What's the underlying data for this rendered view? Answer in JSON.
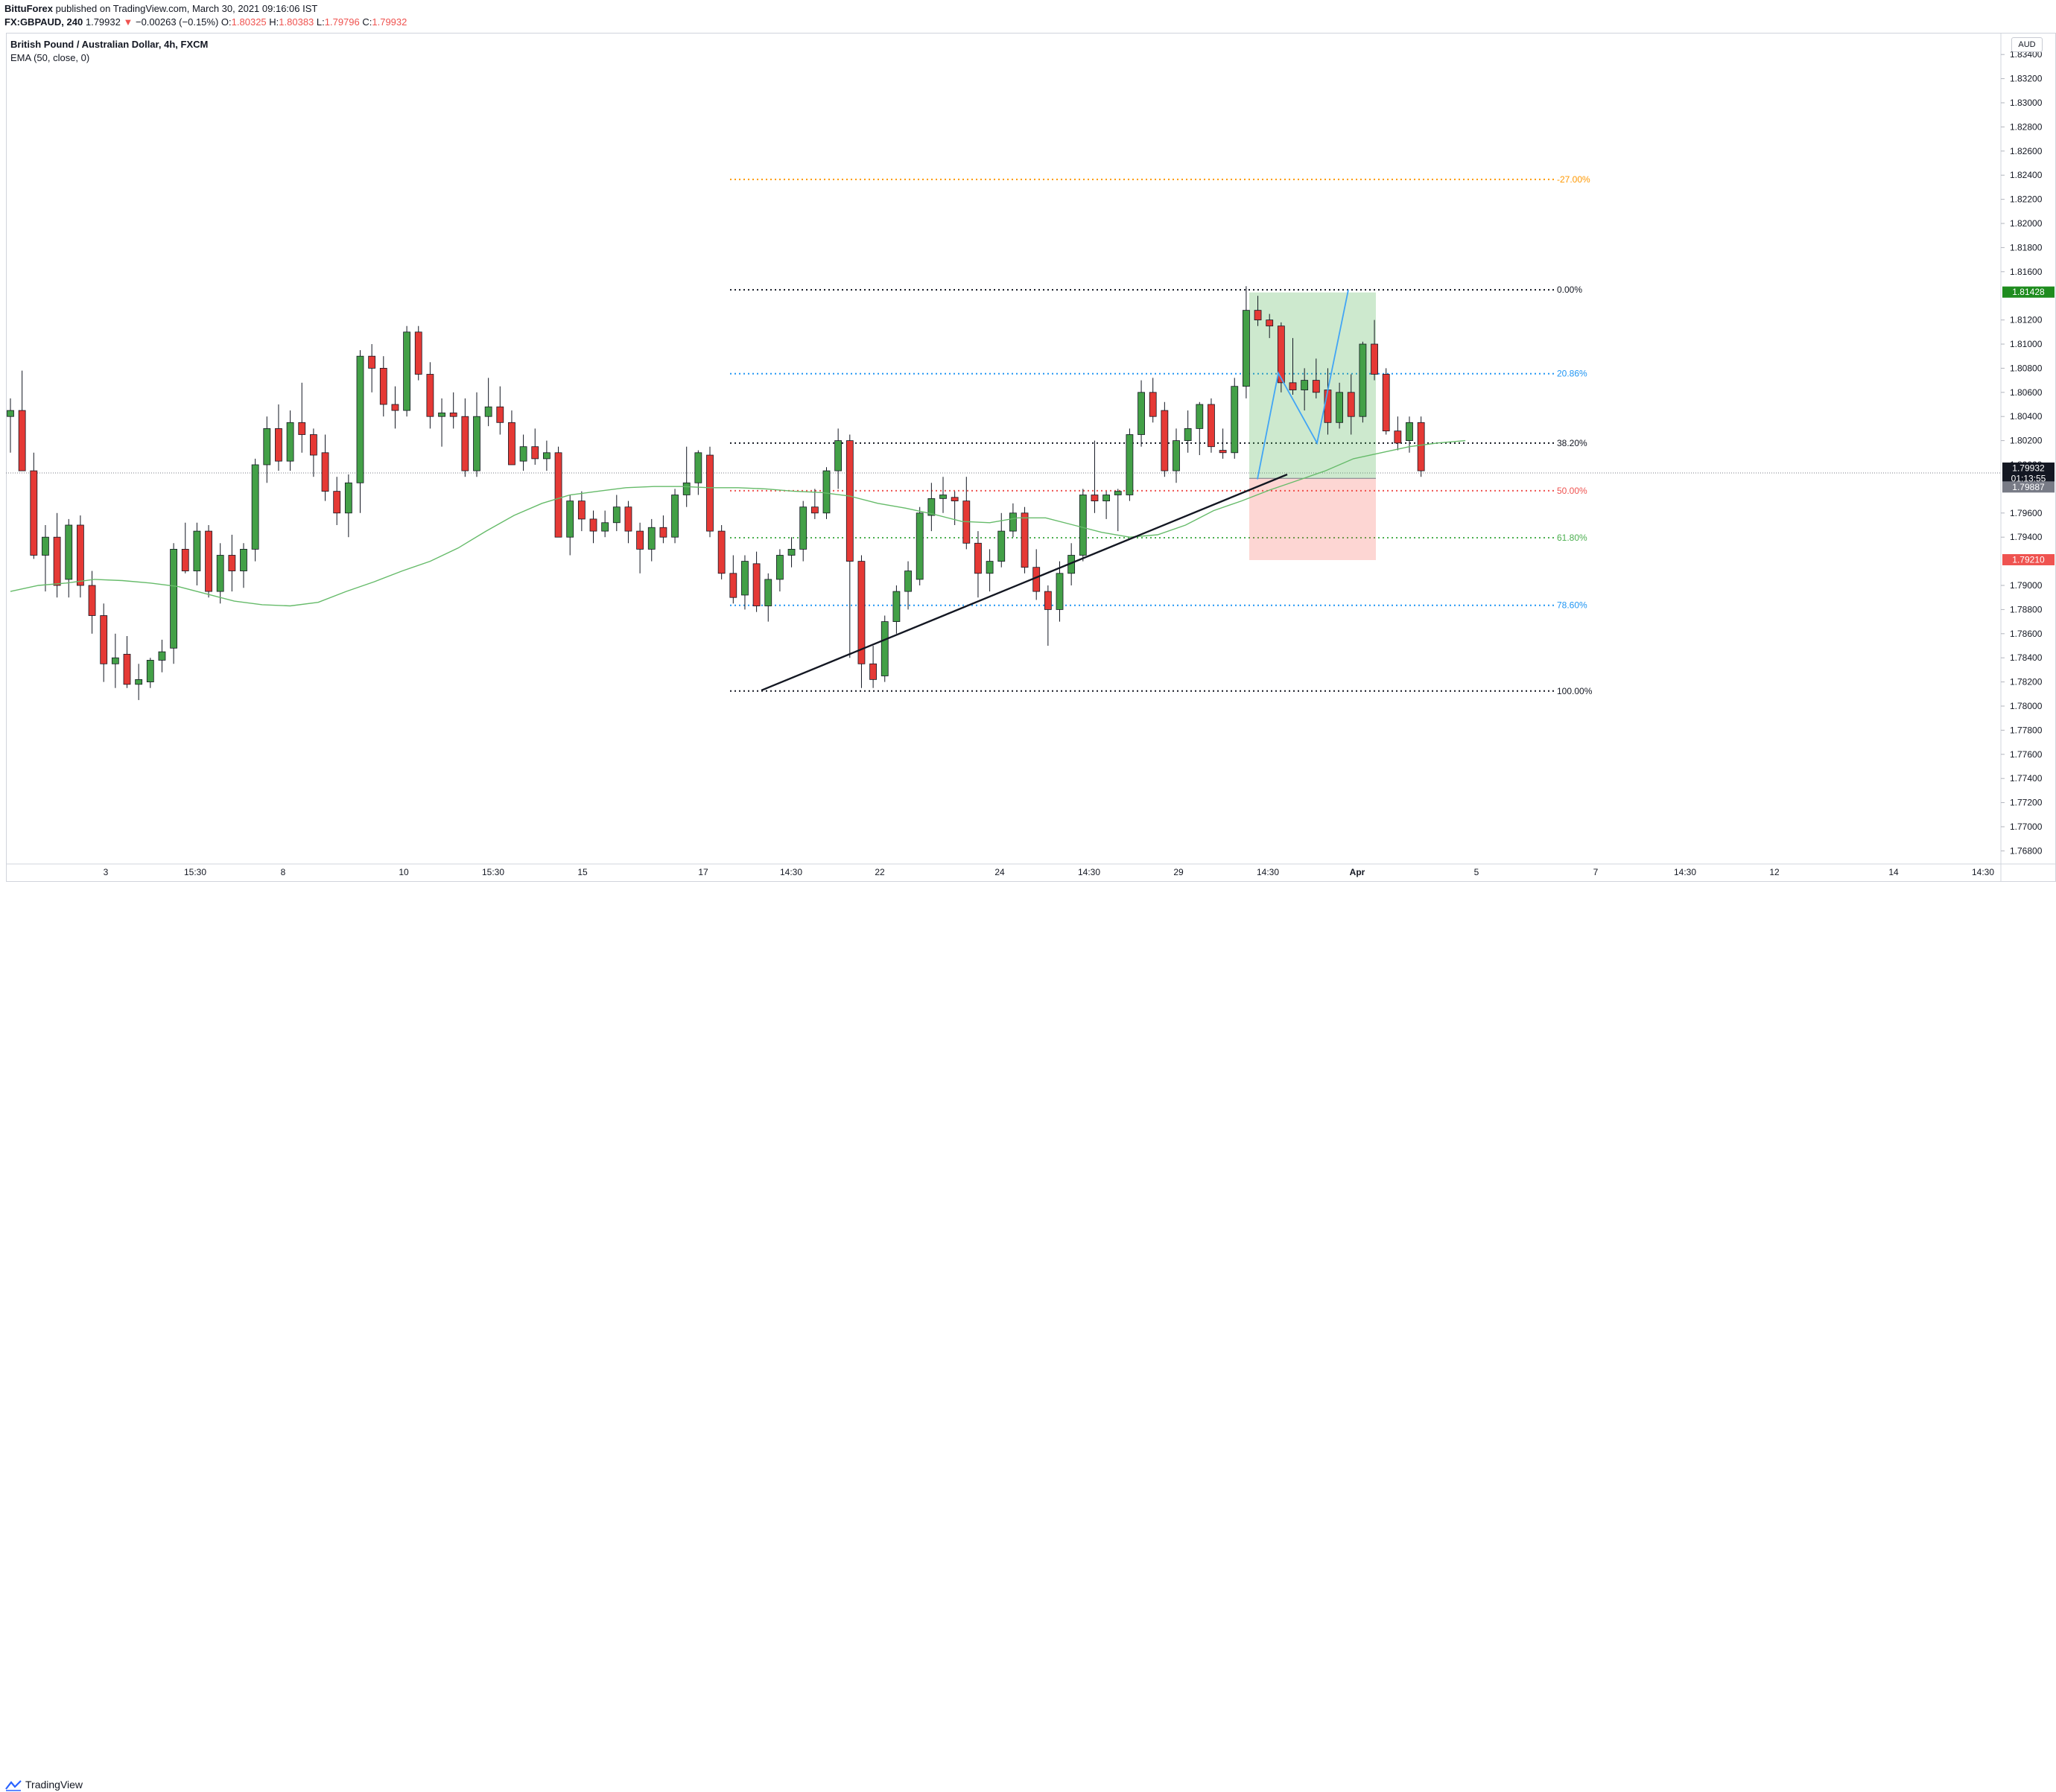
{
  "header": {
    "author": "BittuForex",
    "published_text": "published on TradingView.com, March 30, 2021 09:16:06 IST",
    "symbol": "FX:GBPAUD, 240",
    "last": "1.79932",
    "change": "−0.00263 (−0.15%)",
    "open_label": "O:",
    "open": "1.80325",
    "high_label": "H:",
    "high": "1.80383",
    "low_label": "L:",
    "low": "1.79796",
    "close_label": "C:",
    "close": "1.79932"
  },
  "legend": {
    "title": "British Pound / Australian Dollar, 4h, FXCM",
    "ema": "EMA (50, close, 0)"
  },
  "price_axis": {
    "currency": "AUD",
    "ticks": [
      "1.83400",
      "1.83200",
      "1.83000",
      "1.82800",
      "1.82600",
      "1.82400",
      "1.82200",
      "1.82000",
      "1.81800",
      "1.81600",
      "1.81200",
      "1.81000",
      "1.80800",
      "1.80600",
      "1.80400",
      "1.80200",
      "1.79600",
      "1.79400",
      "1.79000",
      "1.78800",
      "1.78600",
      "1.78400",
      "1.78200",
      "1.78000",
      "1.77800",
      "1.77600",
      "1.77400",
      "1.77200",
      "1.77000",
      "1.76800"
    ],
    "tick_values": [
      1.834,
      1.832,
      1.83,
      1.828,
      1.826,
      1.824,
      1.822,
      1.82,
      1.818,
      1.816,
      1.812,
      1.81,
      1.808,
      1.806,
      1.804,
      1.802,
      1.796,
      1.794,
      1.79,
      1.788,
      1.786,
      1.784,
      1.782,
      1.78,
      1.778,
      1.776,
      1.774,
      1.772,
      1.77,
      1.768
    ],
    "partial_tick": "1.80000",
    "badges": [
      {
        "label": "1.81428",
        "value": 1.81428,
        "color": "#1e8c1e"
      },
      {
        "label": "1.79932",
        "value": 1.79932,
        "color": "#131722"
      },
      {
        "label": "01:13:55",
        "value": 1.79932,
        "color": "#131722"
      },
      {
        "label": "1.79887",
        "value": 1.79887,
        "color": "#787b86"
      },
      {
        "label": "1.79210",
        "value": 1.7921,
        "color": "#ef5350"
      }
    ]
  },
  "time_axis": {
    "labels": [
      "3",
      "15:30",
      "8",
      "10",
      "15:30",
      "15",
      "17",
      "14:30",
      "22",
      "24",
      "14:30",
      "29",
      "14:30",
      "Apr",
      "5",
      "7",
      "14:30",
      "12",
      "14",
      "14:30"
    ],
    "label_x": [
      142,
      262,
      380,
      542,
      662,
      782,
      944,
      1062,
      1181,
      1342,
      1462,
      1582,
      1702,
      1822,
      1982,
      2142,
      2262,
      2382,
      2542,
      2662
    ]
  },
  "fibonacci": [
    {
      "label": "-27.00%",
      "price": 1.82365,
      "color": "#ff9800"
    },
    {
      "label": "0.00%",
      "price": 1.8145,
      "color": "#131722"
    },
    {
      "label": "20.86%",
      "price": 1.80755,
      "color": "#2196f3"
    },
    {
      "label": "38.20%",
      "price": 1.8018,
      "color": "#131722"
    },
    {
      "label": "50.00%",
      "price": 1.79785,
      "color": "#ef5350"
    },
    {
      "label": "61.80%",
      "price": 1.79395,
      "color": "#4caf50"
    },
    {
      "label": "78.60%",
      "price": 1.78835,
      "color": "#2196f3"
    },
    {
      "label": "100.00%",
      "price": 1.78125,
      "color": "#131722"
    }
  ],
  "position_tool": {
    "entry": 1.79887,
    "target": 1.81428,
    "stop": 1.7921
  },
  "footer": {
    "brand": "TradingView"
  },
  "chart_data": {
    "type": "candlestick",
    "title": "British Pound / Australian Dollar, 4h, FXCM",
    "ylabel": "AUD",
    "ylim": [
      1.7665,
      1.8355
    ],
    "indicator": "EMA (50, close, 0)",
    "last_price": 1.79932,
    "candles": [
      [
        1.804,
        1.8055,
        1.801,
        1.8045
      ],
      [
        1.8045,
        1.8078,
        1.7995,
        1.7995
      ],
      [
        1.7995,
        1.801,
        1.7922,
        1.7925
      ],
      [
        1.7925,
        1.795,
        1.7895,
        1.794
      ],
      [
        1.794,
        1.796,
        1.789,
        1.79
      ],
      [
        1.7905,
        1.7955,
        1.789,
        1.795
      ],
      [
        1.795,
        1.7958,
        1.789,
        1.79
      ],
      [
        1.79,
        1.7912,
        1.786,
        1.7875
      ],
      [
        1.7875,
        1.7885,
        1.782,
        1.7835
      ],
      [
        1.7835,
        1.786,
        1.7815,
        1.784
      ],
      [
        1.7843,
        1.7858,
        1.7815,
        1.7818
      ],
      [
        1.7818,
        1.7835,
        1.7805,
        1.7822
      ],
      [
        1.782,
        1.784,
        1.7815,
        1.7838
      ],
      [
        1.7838,
        1.7855,
        1.7828,
        1.7845
      ],
      [
        1.7848,
        1.7935,
        1.7835,
        1.793
      ],
      [
        1.793,
        1.7952,
        1.791,
        1.7912
      ],
      [
        1.7912,
        1.7952,
        1.79,
        1.7945
      ],
      [
        1.7945,
        1.795,
        1.789,
        1.7895
      ],
      [
        1.7895,
        1.7935,
        1.7885,
        1.7925
      ],
      [
        1.7925,
        1.7942,
        1.7895,
        1.7912
      ],
      [
        1.7912,
        1.7935,
        1.7898,
        1.793
      ],
      [
        1.793,
        1.8005,
        1.792,
        1.8
      ],
      [
        1.8,
        1.804,
        1.7985,
        1.803
      ],
      [
        1.803,
        1.805,
        1.7995,
        1.8003
      ],
      [
        1.8003,
        1.8045,
        1.7995,
        1.8035
      ],
      [
        1.8035,
        1.8068,
        1.801,
        1.8025
      ],
      [
        1.8025,
        1.803,
        1.799,
        1.8008
      ],
      [
        1.801,
        1.8025,
        1.797,
        1.7978
      ],
      [
        1.7978,
        1.799,
        1.795,
        1.796
      ],
      [
        1.796,
        1.7992,
        1.794,
        1.7985
      ],
      [
        1.7985,
        1.8095,
        1.796,
        1.809
      ],
      [
        1.809,
        1.81,
        1.806,
        1.808
      ],
      [
        1.808,
        1.809,
        1.804,
        1.805
      ],
      [
        1.805,
        1.8065,
        1.803,
        1.8045
      ],
      [
        1.8045,
        1.8115,
        1.804,
        1.811
      ],
      [
        1.811,
        1.8115,
        1.807,
        1.8075
      ],
      [
        1.8075,
        1.8085,
        1.803,
        1.804
      ],
      [
        1.804,
        1.8055,
        1.8015,
        1.8043
      ],
      [
        1.8043,
        1.806,
        1.803,
        1.804
      ],
      [
        1.804,
        1.8055,
        1.799,
        1.7995
      ],
      [
        1.7995,
        1.806,
        1.799,
        1.804
      ],
      [
        1.804,
        1.8072,
        1.8032,
        1.8048
      ],
      [
        1.8048,
        1.8065,
        1.8025,
        1.8035
      ],
      [
        1.8035,
        1.8045,
        1.8,
        1.8
      ],
      [
        1.8003,
        1.8025,
        1.7995,
        1.8015
      ],
      [
        1.8015,
        1.803,
        1.8,
        1.8005
      ],
      [
        1.8005,
        1.802,
        1.7995,
        1.801
      ],
      [
        1.801,
        1.8015,
        1.794,
        1.794
      ],
      [
        1.794,
        1.7975,
        1.7925,
        1.797
      ],
      [
        1.797,
        1.7978,
        1.7945,
        1.7955
      ],
      [
        1.7955,
        1.7962,
        1.7935,
        1.7945
      ],
      [
        1.7945,
        1.7962,
        1.794,
        1.7952
      ],
      [
        1.7952,
        1.7975,
        1.7945,
        1.7965
      ],
      [
        1.7965,
        1.797,
        1.7935,
        1.7945
      ],
      [
        1.7945,
        1.7952,
        1.791,
        1.793
      ],
      [
        1.793,
        1.7955,
        1.792,
        1.7948
      ],
      [
        1.7948,
        1.7958,
        1.7935,
        1.794
      ],
      [
        1.794,
        1.798,
        1.7935,
        1.7975
      ],
      [
        1.7975,
        1.8015,
        1.7965,
        1.7985
      ],
      [
        1.7985,
        1.8012,
        1.7975,
        1.801
      ],
      [
        1.8008,
        1.8015,
        1.794,
        1.7945
      ],
      [
        1.7945,
        1.795,
        1.7905,
        1.791
      ],
      [
        1.791,
        1.7925,
        1.7885,
        1.789
      ],
      [
        1.7892,
        1.7925,
        1.788,
        1.792
      ],
      [
        1.7918,
        1.7928,
        1.7878,
        1.7883
      ],
      [
        1.7883,
        1.791,
        1.787,
        1.7905
      ],
      [
        1.7905,
        1.793,
        1.7895,
        1.7925
      ],
      [
        1.7925,
        1.794,
        1.7915,
        1.793
      ],
      [
        1.793,
        1.797,
        1.792,
        1.7965
      ],
      [
        1.7965,
        1.798,
        1.7955,
        1.796
      ],
      [
        1.796,
        1.7998,
        1.7955,
        1.7995
      ],
      [
        1.7995,
        1.803,
        1.798,
        1.802
      ],
      [
        1.802,
        1.8025,
        1.784,
        1.792
      ],
      [
        1.792,
        1.7925,
        1.7815,
        1.7835
      ],
      [
        1.7835,
        1.785,
        1.7815,
        1.7822
      ],
      [
        1.7825,
        1.7875,
        1.782,
        1.787
      ],
      [
        1.787,
        1.79,
        1.786,
        1.7895
      ],
      [
        1.7895,
        1.792,
        1.788,
        1.7912
      ],
      [
        1.7905,
        1.7965,
        1.79,
        1.796
      ],
      [
        1.7958,
        1.7985,
        1.7945,
        1.7972
      ],
      [
        1.7972,
        1.799,
        1.796,
        1.7975
      ],
      [
        1.7973,
        1.7978,
        1.795,
        1.797
      ],
      [
        1.797,
        1.799,
        1.793,
        1.7935
      ],
      [
        1.7935,
        1.7945,
        1.789,
        1.791
      ],
      [
        1.791,
        1.793,
        1.7895,
        1.792
      ],
      [
        1.792,
        1.796,
        1.7915,
        1.7945
      ],
      [
        1.7945,
        1.7968,
        1.794,
        1.796
      ],
      [
        1.796,
        1.7965,
        1.791,
        1.7915
      ],
      [
        1.7915,
        1.793,
        1.7888,
        1.7895
      ],
      [
        1.7895,
        1.79,
        1.785,
        1.788
      ],
      [
        1.788,
        1.792,
        1.787,
        1.791
      ],
      [
        1.791,
        1.7935,
        1.79,
        1.7925
      ],
      [
        1.7925,
        1.798,
        1.792,
        1.7975
      ],
      [
        1.7975,
        1.802,
        1.796,
        1.797
      ],
      [
        1.797,
        1.7978,
        1.7955,
        1.7975
      ],
      [
        1.7975,
        1.798,
        1.7945,
        1.7978
      ],
      [
        1.7975,
        1.803,
        1.797,
        1.8025
      ],
      [
        1.8025,
        1.807,
        1.8015,
        1.806
      ],
      [
        1.806,
        1.8072,
        1.8035,
        1.804
      ],
      [
        1.8045,
        1.8052,
        1.799,
        1.7995
      ],
      [
        1.7995,
        1.803,
        1.7985,
        1.802
      ],
      [
        1.802,
        1.8045,
        1.801,
        1.803
      ],
      [
        1.803,
        1.8052,
        1.8008,
        1.805
      ],
      [
        1.805,
        1.8055,
        1.801,
        1.8015
      ],
      [
        1.8012,
        1.803,
        1.8005,
        1.801
      ],
      [
        1.801,
        1.8072,
        1.8005,
        1.8065
      ],
      [
        1.8065,
        1.8148,
        1.8055,
        1.8128
      ],
      [
        1.8128,
        1.814,
        1.8115,
        1.812
      ],
      [
        1.812,
        1.8125,
        1.8105,
        1.8115
      ],
      [
        1.8115,
        1.8118,
        1.806,
        1.8068
      ],
      [
        1.8068,
        1.8105,
        1.8058,
        1.8062
      ],
      [
        1.8062,
        1.808,
        1.8045,
        1.807
      ],
      [
        1.807,
        1.8088,
        1.8055,
        1.806
      ],
      [
        1.8062,
        1.808,
        1.8025,
        1.8035
      ],
      [
        1.8035,
        1.8068,
        1.803,
        1.806
      ],
      [
        1.806,
        1.8075,
        1.8025,
        1.804
      ],
      [
        1.804,
        1.8102,
        1.8035,
        1.81
      ],
      [
        1.81,
        1.812,
        1.807,
        1.8075
      ],
      [
        1.8075,
        1.808,
        1.8025,
        1.8028
      ],
      [
        1.8028,
        1.804,
        1.8012,
        1.8018
      ],
      [
        1.802,
        1.804,
        1.801,
        1.8035
      ],
      [
        1.8035,
        1.804,
        1.799,
        1.7995
      ]
    ],
    "ema_50": [
      1.7895,
      1.79,
      1.7902,
      1.7905,
      1.7904,
      1.7902,
      1.7899,
      1.7893,
      1.7887,
      1.7884,
      1.7883,
      1.7886,
      1.7895,
      1.7903,
      1.7912,
      1.792,
      1.7931,
      1.7945,
      1.7958,
      1.7968,
      1.7975,
      1.7978,
      1.7981,
      1.7982,
      1.7982,
      1.7981,
      1.7981,
      1.798,
      1.7978,
      1.7977,
      1.7974,
      1.7968,
      1.7964,
      1.7959,
      1.7953,
      1.7952,
      1.7956,
      1.7956,
      1.795,
      1.7944,
      1.794,
      1.7942,
      1.795,
      1.7962,
      1.797,
      1.7979,
      1.7987,
      1.7995,
      1.8005,
      1.801,
      1.8015,
      1.8018,
      1.802
    ]
  }
}
